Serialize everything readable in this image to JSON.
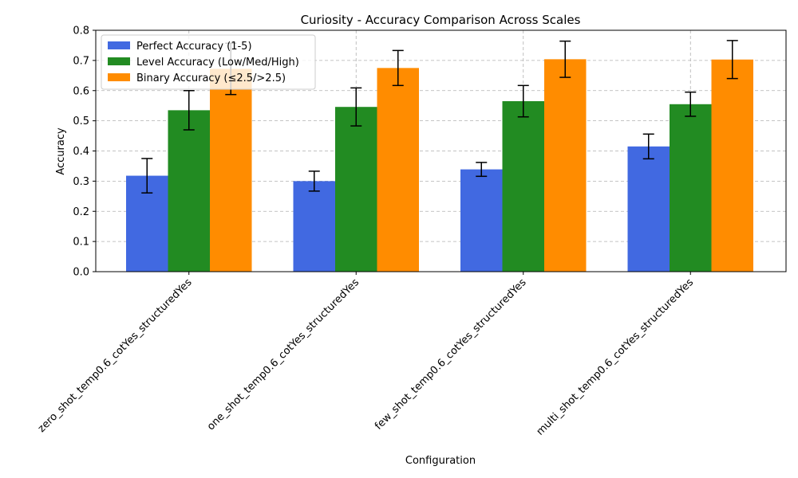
{
  "chart_data": {
    "type": "bar",
    "title": "Curiosity - Accuracy Comparison Across Scales",
    "xlabel": "Configuration",
    "ylabel": "Accuracy",
    "ylim": [
      0,
      0.8
    ],
    "yticks": [
      "0.0",
      "0.1",
      "0.2",
      "0.3",
      "0.4",
      "0.5",
      "0.6",
      "0.7",
      "0.8"
    ],
    "grid": true,
    "legend_position": "top-left",
    "categories": [
      "zero_shot_temp0.6_cotYes_structuredYes",
      "one_shot_temp0.6_cotYes_structuredYes",
      "few_shot_temp0.6_cotYes_structuredYes",
      "multi_shot_temp0.6_cotYes_structuredYes"
    ],
    "series": [
      {
        "name": "Perfect Accuracy (1-5)",
        "color": "#4169e1",
        "values": [
          0.318,
          0.3,
          0.339,
          0.415
        ],
        "errors": [
          0.057,
          0.033,
          0.023,
          0.041
        ]
      },
      {
        "name": "Level Accuracy (Low/Med/High)",
        "color": "#228b22",
        "values": [
          0.535,
          0.546,
          0.565,
          0.555
        ],
        "errors": [
          0.065,
          0.063,
          0.052,
          0.04
        ]
      },
      {
        "name": "Binary Accuracy (≤2.5/>2.5)",
        "color": "#ff8c00",
        "values": [
          0.672,
          0.675,
          0.704,
          0.703
        ],
        "errors": [
          0.085,
          0.058,
          0.06,
          0.063
        ]
      }
    ]
  }
}
